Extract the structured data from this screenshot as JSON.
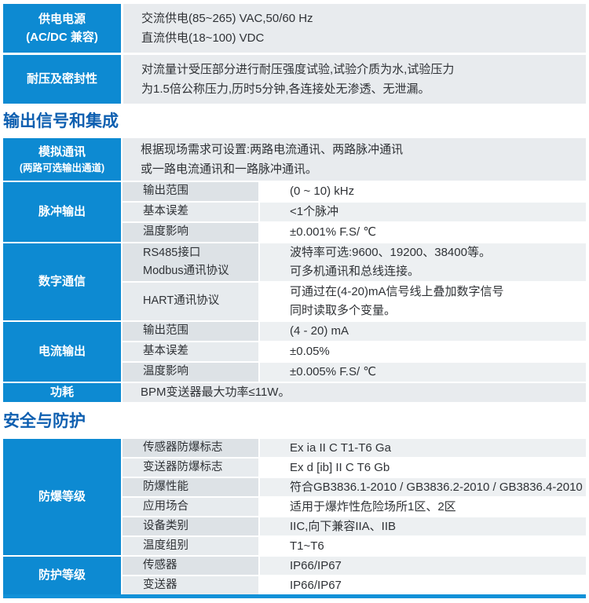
{
  "colors": {
    "header_cell_blue": "#0d8ad2",
    "section_title_blue": "#0e5fb0",
    "bottom_bar_blue": "#1191d8",
    "row_gray": "#e8ebee"
  },
  "power_table": {
    "rows": [
      {
        "header_lines": [
          "供电电源",
          "(AC/DC 兼容)"
        ],
        "content_lines": [
          "交流供电(85~265) VAC,50/60 Hz",
          "直流供电(18~100) VDC"
        ]
      },
      {
        "header_lines": [
          "耐压及密封性"
        ],
        "content_lines": [
          "对流量计受压部分进行耐压强度试验,试验介质为水,试验压力",
          "为1.5倍公称压力,历时5分钟,各连接处无渗透、无泄漏。"
        ]
      }
    ]
  },
  "output_section": {
    "title": "输出信号和集成",
    "analog": {
      "header": "模拟通讯",
      "header_sub": "(两路可选输出通道)",
      "lines": [
        "根据现场需求可设置:两路电流通讯、两路脉冲通讯",
        "或一路电流通讯和一路脉冲通讯。"
      ]
    },
    "pulse": {
      "header": "脉冲输出",
      "rows": [
        {
          "param": "输出范围",
          "value": "(0 ~ 10) kHz"
        },
        {
          "param": "基本误差",
          "value": "<1个脉冲"
        },
        {
          "param": "温度影响",
          "value": "±0.001% F.S/ ℃"
        }
      ]
    },
    "digital": {
      "header": "数字通信",
      "rows": [
        {
          "param_lines": [
            "RS485接口",
            "Modbus通讯协议"
          ],
          "value_lines": [
            "波特率可选:9600、19200、38400等。",
            "可多机通讯和总线连接。"
          ]
        },
        {
          "param_lines": [
            "HART通讯协议"
          ],
          "value_lines": [
            "可通过在(4-20)mA信号线上叠加数字信号",
            "同时读取多个变量。"
          ]
        }
      ]
    },
    "current": {
      "header": "电流输出",
      "rows": [
        {
          "param": "输出范围",
          "value": "(4 - 20) mA"
        },
        {
          "param": "基本误差",
          "value": "±0.05%"
        },
        {
          "param": "温度影响",
          "value": "±0.005% F.S/ ℃"
        }
      ]
    },
    "power_consumption": {
      "header": "功耗",
      "lines": [
        "BPM变送器最大功率≤11W。"
      ]
    }
  },
  "safety_section": {
    "title": "安全与防护",
    "explosion": {
      "header": "防爆等级",
      "rows": [
        {
          "param": "传感器防爆标志",
          "value": "Ex ia II C T1-T6 Ga"
        },
        {
          "param": "变送器防爆标志",
          "value": "Ex d [ib] II C T6 Gb"
        },
        {
          "param": "防爆性能",
          "value": "符合GB3836.1-2010 / GB3836.2-2010 / GB3836.4-2010"
        },
        {
          "param": "应用场合",
          "value": "适用于爆炸性危险场所1区、2区"
        },
        {
          "param": "设备类别",
          "value": "IIC,向下兼容IIA、IIB"
        },
        {
          "param": "温度组别",
          "value": "T1~T6"
        }
      ]
    },
    "protection": {
      "header": "防护等级",
      "rows": [
        {
          "param": "传感器",
          "value": "IP66/IP67"
        },
        {
          "param": "变送器",
          "value": "IP66/IP67"
        }
      ]
    }
  }
}
